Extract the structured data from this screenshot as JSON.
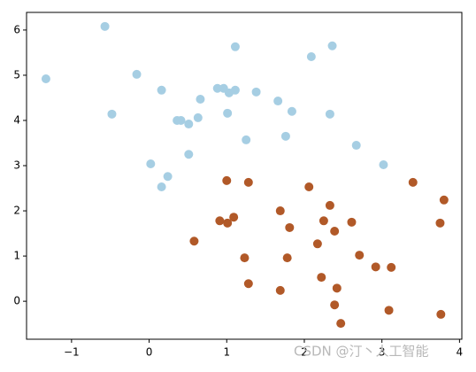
{
  "chart_data": {
    "type": "scatter",
    "xlim": [
      -1.58,
      4.03
    ],
    "ylim": [
      -0.84,
      6.39
    ],
    "xticks": [
      {
        "value": -1,
        "label": "−1"
      },
      0,
      1,
      2,
      3,
      4
    ],
    "yticks": [
      0,
      1,
      2,
      3,
      4,
      5,
      6
    ],
    "watermark": "CSDN @汀丶人工智能",
    "series": [
      {
        "color": "#a6cee3",
        "x": [
          -1.33,
          -0.57,
          -0.48,
          -0.16,
          0.16,
          0.02,
          0.16,
          0.24,
          0.36,
          0.41,
          0.51,
          0.51,
          0.63,
          0.66,
          0.88,
          0.96,
          1.03,
          1.11,
          1.11,
          1.01,
          1.25,
          1.38,
          1.66,
          1.84,
          1.76,
          2.09,
          2.36,
          2.33,
          2.67,
          3.02
        ],
        "values": [
          4.92,
          6.08,
          4.14,
          5.02,
          4.67,
          3.04,
          2.53,
          2.76,
          4.0,
          4.0,
          3.92,
          3.25,
          4.06,
          4.47,
          4.71,
          4.71,
          4.61,
          4.67,
          5.63,
          4.16,
          3.57,
          4.63,
          4.43,
          4.2,
          3.65,
          5.41,
          5.65,
          4.14,
          3.45,
          3.02
        ]
      },
      {
        "color": "#b15928",
        "x": [
          0.58,
          1.0,
          0.91,
          1.01,
          1.09,
          1.28,
          1.23,
          1.28,
          1.69,
          1.69,
          1.81,
          1.78,
          2.06,
          2.17,
          2.25,
          2.33,
          2.39,
          2.22,
          2.42,
          2.39,
          2.47,
          2.61,
          2.71,
          2.92,
          3.12,
          3.09,
          3.4,
          3.8,
          3.75,
          3.76
        ],
        "values": [
          1.33,
          2.67,
          1.78,
          1.73,
          1.86,
          2.63,
          0.96,
          0.39,
          2.0,
          0.24,
          1.63,
          0.96,
          2.53,
          1.27,
          1.78,
          2.12,
          1.55,
          0.53,
          0.29,
          -0.08,
          -0.49,
          1.75,
          1.02,
          0.76,
          0.75,
          -0.2,
          2.63,
          2.24,
          1.73,
          -0.29
        ]
      }
    ]
  }
}
